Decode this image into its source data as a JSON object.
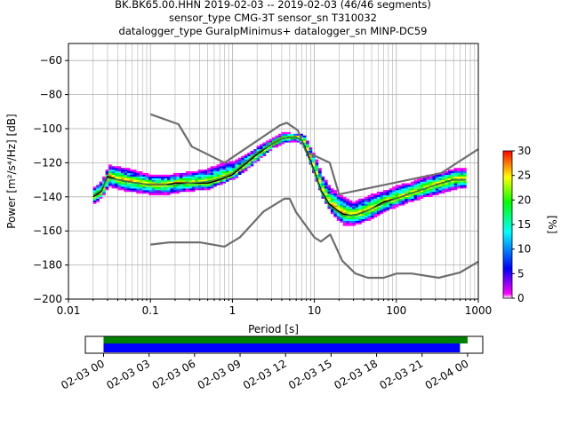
{
  "title_lines": [
    "BK.BK65.00.HHN   2019-02-03 -- 2019-02-03  (46/46 segments)",
    "sensor_type CMG-3T sensor_sn T310032",
    "datalogger_type GuralpMinimus+ datalogger_sn MINP-DC59"
  ],
  "chart_data": [
    {
      "type": "heatmap",
      "title": "BK.BK65.00.HHN   2019-02-03 -- 2019-02-03  (46/46 segments)",
      "xlabel": "Period [s]",
      "ylabel": "Power [m²/s⁴/Hz] [dB]",
      "x_scale": "log",
      "xlim": [
        0.01,
        1000
      ],
      "ylim": [
        -200,
        -50
      ],
      "x_ticks": [
        0.01,
        0.1,
        1,
        10,
        100,
        1000
      ],
      "x_tick_labels": [
        "0.01",
        "0.1",
        "1",
        "10",
        "100",
        "1000"
      ],
      "y_ticks": [
        -200,
        -180,
        -160,
        -140,
        -120,
        -100,
        -80,
        -60
      ],
      "y_tick_labels": [
        "−200",
        "−180",
        "−160",
        "−140",
        "−120",
        "−100",
        "−80",
        "−60"
      ],
      "grid": true,
      "colorbar": {
        "label": "[%]",
        "range": [
          0,
          30
        ],
        "ticks": [
          0,
          5,
          10,
          15,
          20,
          25,
          30
        ],
        "colors": [
          "#ffffff",
          "#ff00ff",
          "#0000ff",
          "#00ffff",
          "#00ff00",
          "#ffff00",
          "#ff0000"
        ]
      },
      "psd_density": {
        "x": [
          0.02,
          0.025,
          0.03,
          0.04,
          0.05,
          0.07,
          0.1,
          0.15,
          0.2,
          0.3,
          0.5,
          0.7,
          1,
          1.5,
          2,
          3,
          4,
          5,
          6,
          7,
          8,
          10,
          12,
          15,
          18,
          22,
          28,
          35,
          50,
          70,
          100,
          150,
          200,
          300,
          500,
          700
        ],
        "mode": [
          -140,
          -137,
          -128,
          -130,
          -131,
          -132,
          -133,
          -133,
          -132,
          -132,
          -132,
          -130,
          -127,
          -120,
          -115,
          -109,
          -106,
          -105,
          -105,
          -107,
          -113,
          -125,
          -136,
          -144,
          -147,
          -150,
          -151,
          -150,
          -147,
          -143,
          -141,
          -138,
          -136,
          -133,
          -130,
          -130
        ],
        "low": [
          -144,
          -141,
          -134,
          -136,
          -137,
          -138,
          -139,
          -139,
          -138,
          -137,
          -136,
          -133,
          -130,
          -124,
          -119,
          -112,
          -109,
          -108,
          -108,
          -110,
          -117,
          -130,
          -141,
          -149,
          -153,
          -157,
          -157,
          -156,
          -153,
          -149,
          -146,
          -143,
          -141,
          -139,
          -136,
          -135
        ],
        "high": [
          -135,
          -131,
          -122,
          -123,
          -124,
          -126,
          -128,
          -128,
          -127,
          -126,
          -124,
          -121,
          -120,
          -115,
          -111,
          -106,
          -103,
          -103,
          -104,
          -103,
          -108,
          -118,
          -128,
          -135,
          -138,
          -141,
          -144,
          -142,
          -139,
          -137,
          -134,
          -132,
          -129,
          -127,
          -124,
          -124
        ]
      },
      "series": [
        {
          "name": "NHNM",
          "x": [
            0.1,
            0.22,
            0.32,
            0.8,
            3.8,
            4.6,
            6.3,
            7.9,
            15.4,
            20,
            354.8,
            1000
          ],
          "values": [
            -91.5,
            -97.4,
            -110.5,
            -120,
            -98,
            -96.5,
            -101,
            -113.5,
            -120,
            -138.5,
            -126,
            -112
          ]
        },
        {
          "name": "NLNM",
          "x": [
            0.1,
            0.17,
            0.4,
            0.8,
            1.24,
            2.4,
            4.3,
            5,
            6,
            10,
            12,
            15.6,
            21.9,
            31.6,
            45,
            70,
            101,
            154,
            328,
            600,
            1000
          ],
          "values": [
            -168,
            -166.7,
            -166.7,
            -169.2,
            -163.7,
            -148.6,
            -141.1,
            -141.1,
            -149,
            -163.8,
            -166.2,
            -162.1,
            -177.5,
            -185,
            -187.5,
            -187.5,
            -185,
            -185,
            -187.5,
            -184.4,
            -178
          ]
        },
        {
          "name": "mode",
          "x": [
            0.02,
            0.025,
            0.03,
            0.04,
            0.05,
            0.07,
            0.1,
            0.15,
            0.2,
            0.3,
            0.5,
            0.7,
            1,
            1.5,
            2,
            3,
            4,
            5,
            6,
            7,
            8,
            10,
            12,
            15,
            18,
            22,
            28,
            35,
            50,
            70,
            100,
            150,
            200,
            300,
            500,
            700
          ],
          "values": [
            -140,
            -137,
            -128,
            -130,
            -131,
            -132,
            -133,
            -133,
            -132,
            -132,
            -132,
            -130,
            -127,
            -120,
            -115,
            -109,
            -106,
            -105,
            -105,
            -107,
            -113,
            -125,
            -136,
            -144,
            -147,
            -150,
            -151,
            -150,
            -147,
            -143,
            -141,
            -138,
            -136,
            -133,
            -130,
            -130
          ]
        },
        {
          "name": "mean",
          "x": [
            0.02,
            0.025,
            0.03,
            0.04,
            0.05,
            0.07,
            0.1,
            0.15,
            0.2,
            0.3,
            0.5,
            0.7,
            1,
            1.5,
            2,
            3,
            4,
            5,
            6,
            7,
            8,
            10,
            12,
            15,
            18,
            22,
            28,
            35,
            50,
            70,
            100,
            150,
            200,
            300,
            500,
            700
          ],
          "values": [
            -139,
            -136,
            -129,
            -130,
            -131,
            -132,
            -133,
            -133,
            -133,
            -132,
            -131,
            -129,
            -126,
            -119,
            -114,
            -109,
            -106,
            -105,
            -105,
            -107,
            -114,
            -126,
            -137,
            -145,
            -148,
            -151,
            -151,
            -150,
            -147,
            -144,
            -141,
            -138,
            -136,
            -133,
            -130,
            -130
          ]
        }
      ]
    },
    {
      "type": "timeline",
      "x_tick_labels": [
        "02-03 00",
        "02-03 03",
        "02-03 06",
        "02-03 09",
        "02-03 12",
        "02-03 15",
        "02-03 18",
        "02-03 21",
        "02-04 00"
      ],
      "x_range_hours": [
        -1.2,
        25
      ],
      "coverage": [
        {
          "color": "#008000",
          "start_hour": 0,
          "end_hour": 24
        },
        {
          "color": "#0000ff",
          "start_hour": 0,
          "end_hour": 23.5
        }
      ]
    }
  ]
}
